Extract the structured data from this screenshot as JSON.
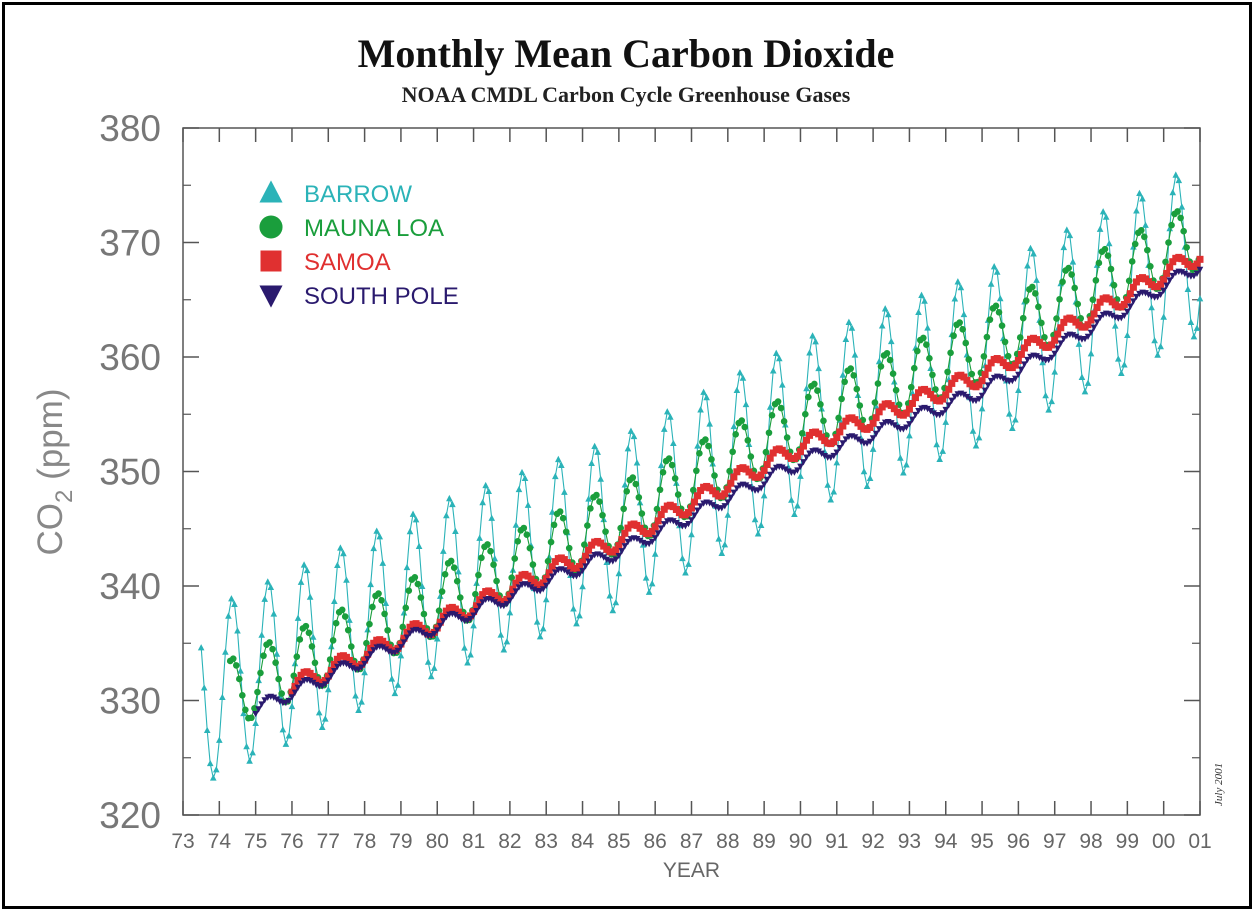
{
  "chart_data": {
    "type": "line",
    "title": "Monthly Mean Carbon Dioxide",
    "subtitle": "NOAA CMDL Carbon Cycle Greenhouse Gases",
    "xlabel": "YEAR",
    "ylabel_main": "CO",
    "ylabel_sub": "2",
    "ylabel_unit": "(ppm)",
    "xlim": [
      1973,
      2001
    ],
    "ylim": [
      320,
      380
    ],
    "x_ticks": [
      1973,
      1974,
      1975,
      1976,
      1977,
      1978,
      1979,
      1980,
      1981,
      1982,
      1983,
      1984,
      1985,
      1986,
      1987,
      1988,
      1989,
      1990,
      1991,
      1992,
      1993,
      1994,
      1995,
      1996,
      1997,
      1998,
      1999,
      2000,
      2001
    ],
    "x_tick_labels": [
      "73",
      "74",
      "75",
      "76",
      "77",
      "78",
      "79",
      "80",
      "81",
      "82",
      "83",
      "84",
      "85",
      "86",
      "87",
      "88",
      "89",
      "90",
      "91",
      "92",
      "93",
      "94",
      "95",
      "96",
      "97",
      "98",
      "99",
      "00",
      "01"
    ],
    "y_ticks": [
      320,
      330,
      340,
      350,
      360,
      370,
      380
    ],
    "y_tick_labels": [
      "320",
      "330",
      "340",
      "350",
      "360",
      "370",
      "380"
    ],
    "grid": false,
    "legend_position": "top-left",
    "series": [
      {
        "name": "BARROW",
        "color": "#2bb3b8",
        "marker": "triangle-up",
        "start": 1973.5,
        "end": 2001,
        "trend": [
          [
            1973.5,
            330.2
          ],
          [
            1980,
            339.8
          ],
          [
            1985,
            345.5
          ],
          [
            1990,
            354.0
          ],
          [
            1995,
            359.9
          ],
          [
            2001,
            369.5
          ]
        ],
        "amplitude": 7.5
      },
      {
        "name": "MAUNA LOA",
        "color": "#1a9e3c",
        "marker": "circle",
        "start": 1974.3,
        "end": 2001,
        "trend": [
          [
            1974.3,
            330.6
          ],
          [
            1980,
            338.7
          ],
          [
            1985,
            345.9
          ],
          [
            1990,
            354.2
          ],
          [
            1995,
            360.9
          ],
          [
            2001,
            370.8
          ]
        ],
        "amplitude": 3.0
      },
      {
        "name": "SAMOA",
        "color": "#e03030",
        "marker": "square",
        "start": 1976,
        "end": 2001,
        "trend": [
          [
            1976,
            331.2
          ],
          [
            1980,
            336.8
          ],
          [
            1985,
            344.0
          ],
          [
            1990,
            352.2
          ],
          [
            1995,
            358.4
          ],
          [
            2001,
            369.0
          ]
        ],
        "amplitude": 0.8
      },
      {
        "name": "SOUTH POLE",
        "color": "#2a1a6e",
        "marker": "triangle-down",
        "start": 1975,
        "end": 2001,
        "trend": [
          [
            1975,
            329.2
          ],
          [
            1980,
            336.5
          ],
          [
            1985,
            343.0
          ],
          [
            1990,
            350.8
          ],
          [
            1995,
            357.0
          ],
          [
            2001,
            368.0
          ]
        ],
        "amplitude": 0.6
      }
    ]
  },
  "side_note": "July 2001"
}
